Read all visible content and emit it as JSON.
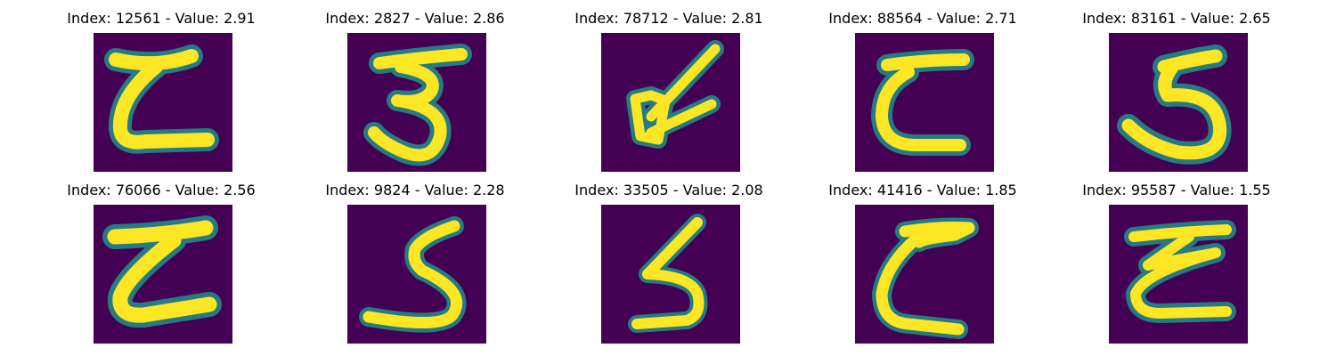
{
  "figure": {
    "background_color": "#440154",
    "stroke_color": "#fde725",
    "edge_color": "#21918c",
    "panels": [
      {
        "title": "Index: 12561 - Value: 2.91",
        "glyph": "z-curve"
      },
      {
        "title": "Index: 2827 - Value: 2.86",
        "glyph": "three"
      },
      {
        "title": "Index: 78712 - Value: 2.81",
        "glyph": "box-diagonal"
      },
      {
        "title": "Index: 88564 - Value: 2.71",
        "glyph": "c-bracket"
      },
      {
        "title": "Index: 83161 - Value: 2.65",
        "glyph": "five-hook"
      },
      {
        "title": "Index: 76066 - Value: 2.56",
        "glyph": "z-curve"
      },
      {
        "title": "Index: 9824 - Value: 2.28",
        "glyph": "five-s"
      },
      {
        "title": "Index: 33505 - Value: 2.08",
        "glyph": "five-s"
      },
      {
        "title": "Index: 41416 - Value: 1.85",
        "glyph": "z-curve"
      },
      {
        "title": "Index: 95587 - Value: 1.55",
        "glyph": "z-curve"
      }
    ]
  }
}
